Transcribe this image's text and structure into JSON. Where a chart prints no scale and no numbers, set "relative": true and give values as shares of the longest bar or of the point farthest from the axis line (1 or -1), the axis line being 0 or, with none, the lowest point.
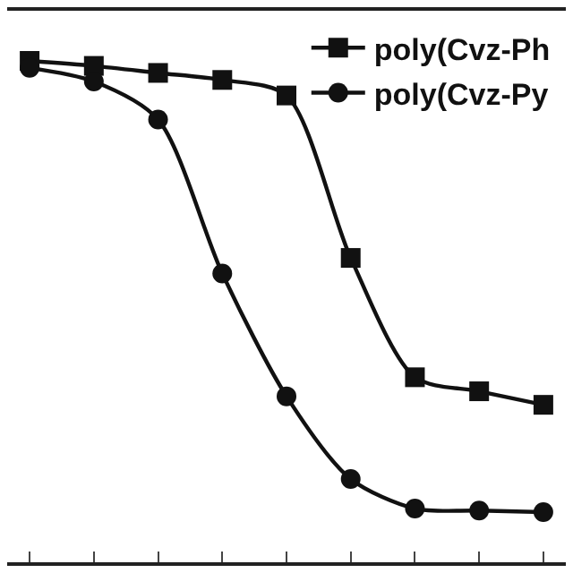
{
  "chart_data": {
    "type": "line",
    "relative": true,
    "categories": [
      null,
      null,
      null,
      null,
      null,
      null,
      null,
      null,
      null
    ],
    "series": [
      {
        "name": "poly(Cvz-Ph",
        "color": "#111111",
        "marker": "square",
        "values": [
          1,
          0.99,
          0.976,
          0.962,
          0.931,
          0.607,
          0.369,
          0.341,
          0.314
        ]
      },
      {
        "name": "poly(Cvz-Py",
        "color": "#111111",
        "marker": "circle",
        "values": [
          0.986,
          0.959,
          0.883,
          0.576,
          0.331,
          0.166,
          0.107,
          0.103,
          0.1
        ]
      }
    ],
    "legend": "top right",
    "line_style": "solid"
  }
}
